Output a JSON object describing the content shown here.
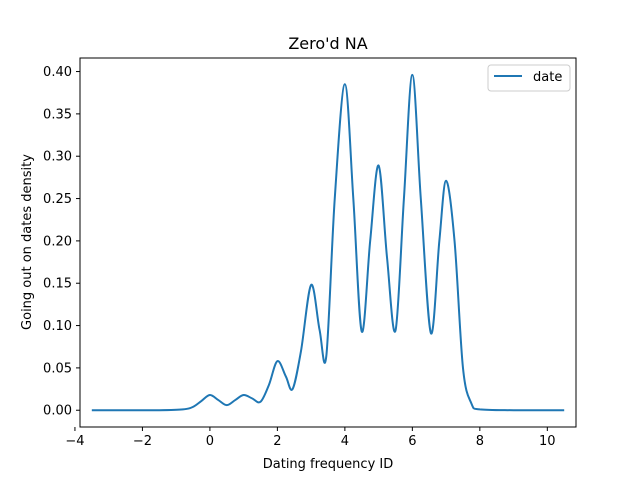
{
  "chart_data": {
    "type": "line",
    "title": "Zero'd NA",
    "xlabel": "Dating frequency ID",
    "ylabel": "Going out on dates density",
    "xlim": [
      -3.85,
      10.85
    ],
    "ylim": [
      -0.0198,
      0.416
    ],
    "xticks": [
      -4,
      -2,
      0,
      2,
      4,
      6,
      8,
      10
    ],
    "xtick_labels": [
      "−4",
      "−2",
      "0",
      "2",
      "4",
      "6",
      "8",
      "10"
    ],
    "yticks": [
      0.0,
      0.05,
      0.1,
      0.15,
      0.2,
      0.25,
      0.3,
      0.35,
      0.4
    ],
    "ytick_labels": [
      "0.00",
      "0.05",
      "0.10",
      "0.15",
      "0.20",
      "0.25",
      "0.30",
      "0.35",
      "0.40"
    ],
    "grid": false,
    "legend_position": "top-right",
    "series": [
      {
        "name": "date",
        "color": "#1f77b4",
        "x": [
          -3.5,
          -2.5,
          -1.5,
          -0.8,
          -0.5,
          -0.25,
          0.0,
          0.25,
          0.5,
          0.75,
          1.0,
          1.25,
          1.5,
          1.75,
          2.0,
          2.25,
          2.45,
          2.7,
          3.0,
          3.25,
          3.45,
          3.7,
          4.0,
          4.25,
          4.5,
          4.75,
          5.0,
          5.25,
          5.5,
          5.75,
          6.0,
          6.25,
          6.55,
          6.8,
          7.0,
          7.25,
          7.5,
          7.75,
          8.0,
          9.0,
          10.5
        ],
        "y": [
          0.0,
          0.0,
          0.0,
          0.001,
          0.004,
          0.011,
          0.018,
          0.012,
          0.006,
          0.012,
          0.018,
          0.014,
          0.01,
          0.03,
          0.058,
          0.04,
          0.025,
          0.07,
          0.148,
          0.095,
          0.064,
          0.25,
          0.385,
          0.25,
          0.093,
          0.2,
          0.289,
          0.18,
          0.094,
          0.25,
          0.396,
          0.25,
          0.091,
          0.2,
          0.271,
          0.2,
          0.05,
          0.008,
          0.001,
          0.0,
          0.0
        ]
      }
    ]
  }
}
